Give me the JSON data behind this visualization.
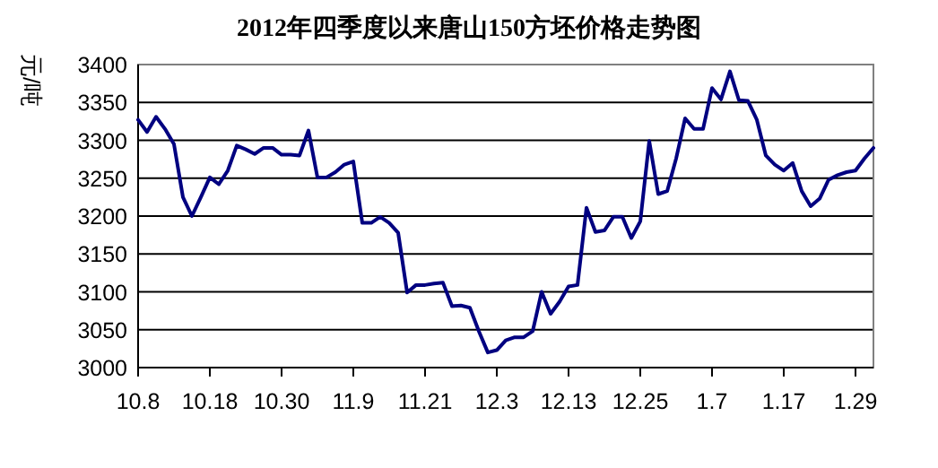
{
  "chart_data": {
    "type": "line",
    "title": "2012年四季度以来唐山150方坯价格走势图",
    "ylabel": "元/吨",
    "categories": [
      "10.8",
      null,
      null,
      null,
      null,
      null,
      null,
      null,
      "10.18",
      null,
      null,
      null,
      null,
      null,
      null,
      null,
      "10.30",
      null,
      null,
      null,
      null,
      null,
      null,
      null,
      "11.9",
      null,
      null,
      null,
      null,
      null,
      null,
      null,
      "11.21",
      null,
      null,
      null,
      null,
      null,
      null,
      null,
      "12.3",
      null,
      null,
      null,
      null,
      null,
      null,
      null,
      "12.13",
      null,
      null,
      null,
      null,
      null,
      null,
      null,
      "12.25",
      null,
      null,
      null,
      null,
      null,
      null,
      null,
      "1.7",
      null,
      null,
      null,
      null,
      null,
      null,
      null,
      "1.17",
      null,
      null,
      null,
      null,
      null,
      null,
      null,
      "1.29",
      null,
      null
    ],
    "series": [
      {
        "color": "#000080",
        "values": [
          3327,
          3311,
          3331,
          3315,
          3295,
          3225,
          3200,
          3225,
          3251,
          3242,
          3260,
          3293,
          3288,
          3282,
          3290,
          3290,
          3281,
          3281,
          3280,
          3313,
          3251,
          3251,
          3258,
          3268,
          3272,
          3191,
          3191,
          3199,
          3191,
          3178,
          3099,
          3109,
          3109,
          3111,
          3112,
          3081,
          3082,
          3079,
          3048,
          3020,
          3023,
          3036,
          3040,
          3040,
          3048,
          3100,
          3071,
          3087,
          3107,
          3109,
          3211,
          3179,
          3181,
          3199,
          3199,
          3171,
          3193,
          3299,
          3229,
          3233,
          3276,
          3329,
          3315,
          3315,
          3369,
          3354,
          3391,
          3353,
          3352,
          3327,
          3280,
          3268,
          3260,
          3270,
          3233,
          3213,
          3223,
          3248,
          3254,
          3258,
          3260,
          3276,
          3290
        ]
      }
    ],
    "ylim": [
      3000,
      3400
    ],
    "yticks": [
      3000,
      3050,
      3100,
      3150,
      3200,
      3250,
      3300,
      3350,
      3400
    ],
    "grid": "y",
    "marker": "none",
    "line_style": "solid"
  }
}
